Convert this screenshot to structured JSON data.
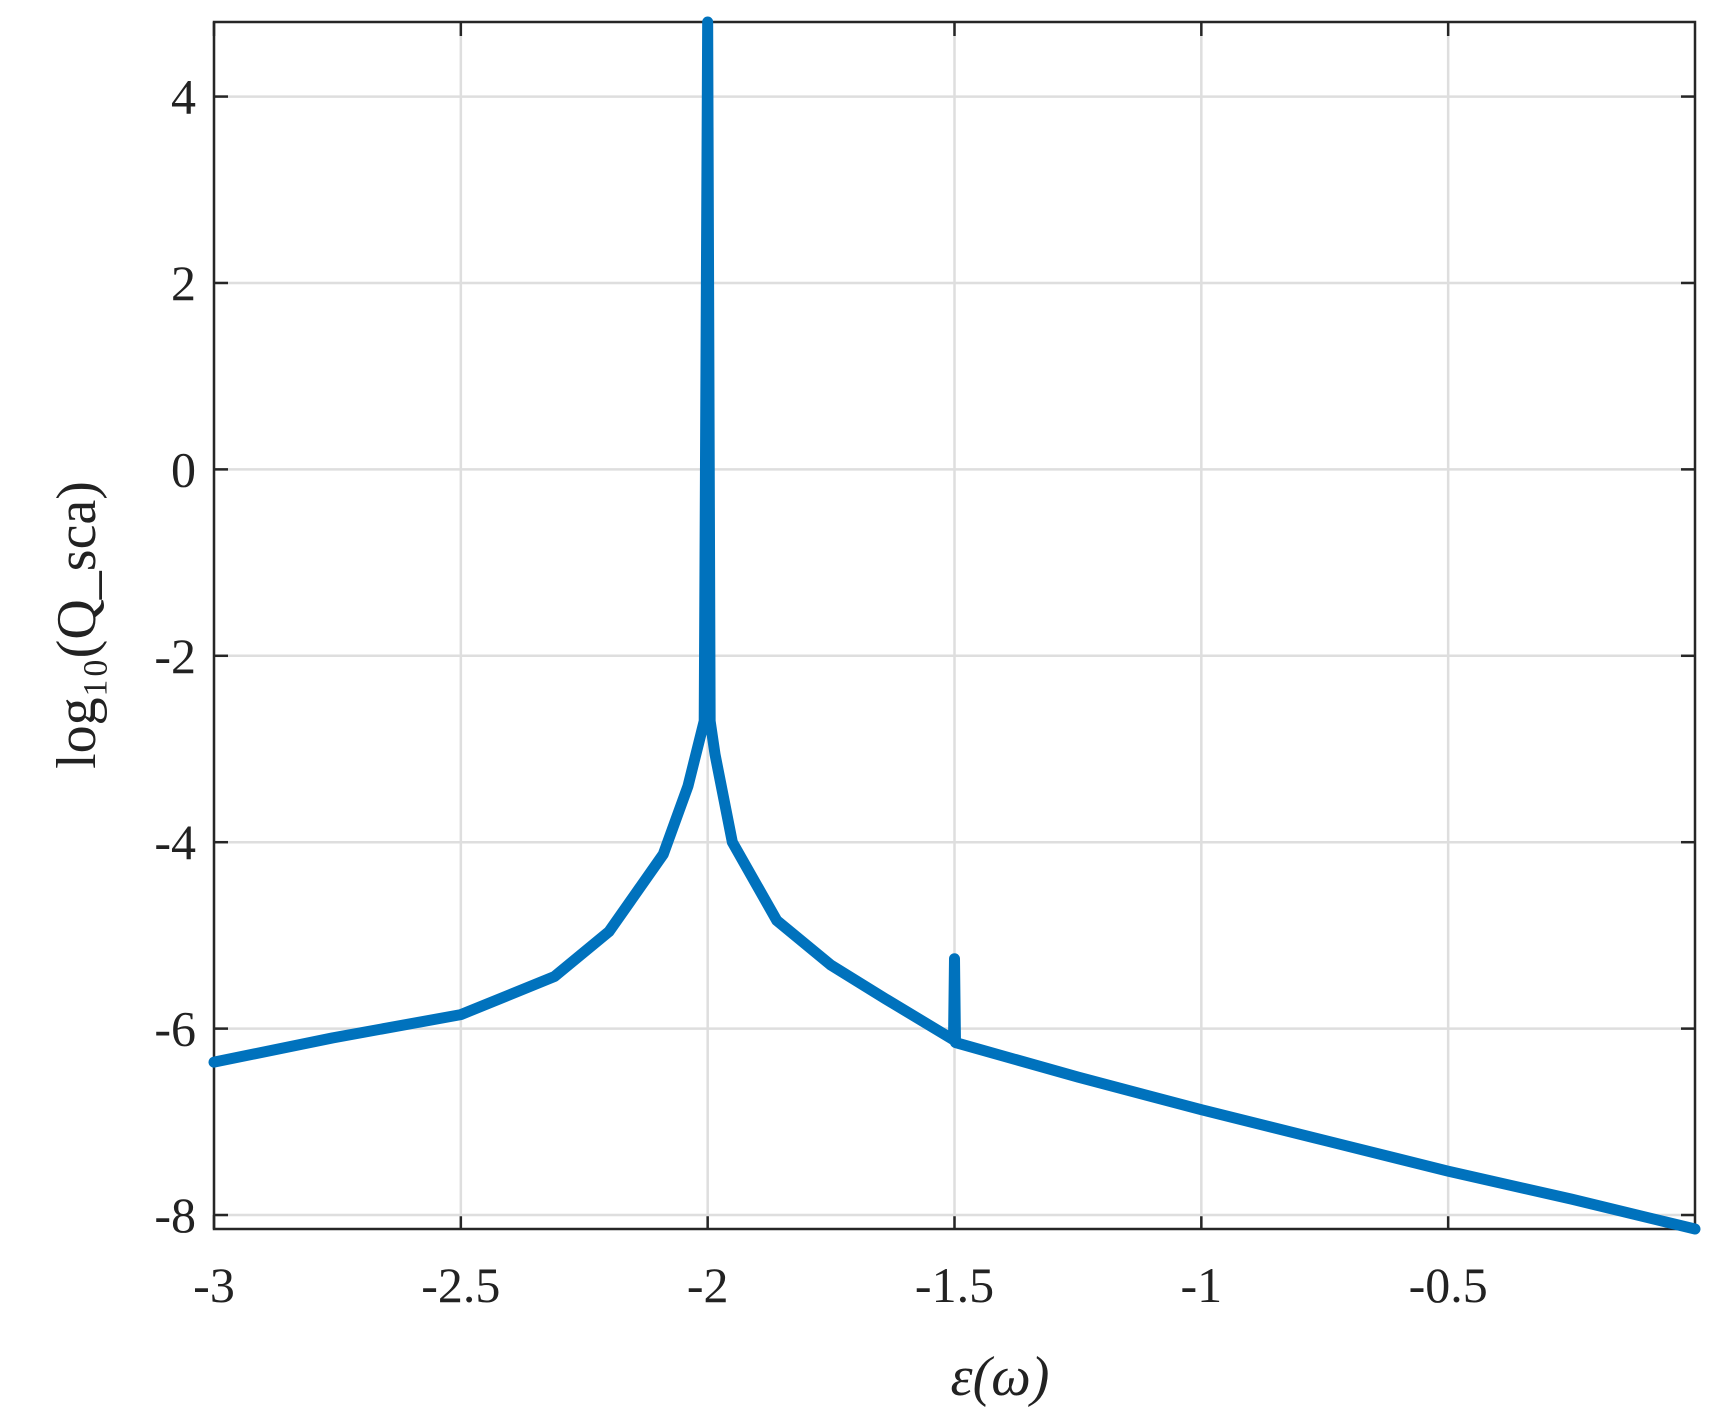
{
  "chart_data": {
    "type": "line",
    "xlabel": "ε(ω)",
    "ylabel": "log₁₀(Q_sca)",
    "series": [
      {
        "name": "log10(Qsca)",
        "color": "#0072bd",
        "x": [
          -3,
          -2.76,
          -2.5,
          -2.31,
          -2.2,
          -2.09,
          -2.04,
          -2.007,
          -2.0,
          -1.995,
          -1.985,
          -1.95,
          -1.86,
          -1.75,
          -1.64,
          -1.502,
          -1.5,
          -1.498,
          -1.25,
          -1.0,
          -0.75,
          -0.5,
          -0.25,
          0
        ],
        "values": [
          -6.36,
          -6.1,
          -5.85,
          -5.44,
          -4.96,
          -4.13,
          -3.4,
          -2.7,
          4.8,
          -2.7,
          -3.06,
          -4.0,
          -4.84,
          -5.32,
          -5.68,
          -6.12,
          -5.25,
          -6.15,
          -6.52,
          -6.87,
          -7.2,
          -7.53,
          -7.83,
          -8.15
        ]
      }
    ],
    "xlim": [
      -3,
      0
    ],
    "ylim": [
      -8.15,
      4.8
    ],
    "xticks": [
      -3,
      -2.5,
      -2,
      -1.5,
      -1,
      -0.5
    ],
    "yticks": [
      -8,
      -6,
      -4,
      -2,
      0,
      2,
      4
    ],
    "grid": true
  }
}
